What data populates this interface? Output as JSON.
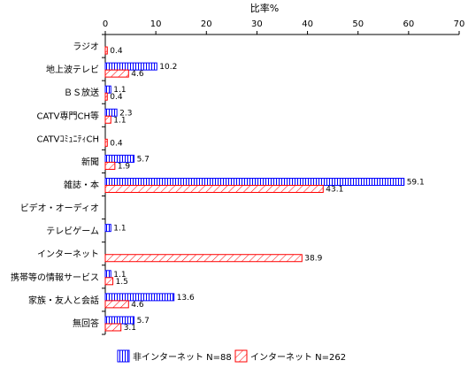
{
  "chart_data": {
    "type": "bar",
    "orientation": "horizontal",
    "title": "比率%",
    "xlim": [
      0,
      70
    ],
    "x_ticks": [
      "0",
      "10",
      "20",
      "30",
      "40",
      "50",
      "60",
      "70"
    ],
    "grid": false,
    "legend_position": "bottom",
    "categories": [
      "ラジオ",
      "地上波テレビ",
      "ＢＳ放送",
      "CATV専門CH等",
      "CATVｺﾐｭﾆﾃｨCH",
      "新聞",
      "雑誌・本",
      "ビデオ・オーディオ",
      "テレビゲーム",
      "インターネット",
      "携帯等の情報サービス",
      "家族・友人と会話",
      "無回答"
    ],
    "series": [
      {
        "name": "非インターネット N=88",
        "pattern": "vertical-lines",
        "color": "#0000ff",
        "values": [
          null,
          10.2,
          1.1,
          2.3,
          null,
          5.7,
          59.1,
          null,
          1.1,
          null,
          1.1,
          13.6,
          5.7
        ],
        "labels": [
          "",
          "10.2",
          "1.1",
          "2.3",
          "",
          "5.7",
          "59.1",
          "",
          "1.1",
          "",
          "1.1",
          "13.6",
          "5.7"
        ]
      },
      {
        "name": "インターネット N=262",
        "pattern": "diagonal-lines",
        "color": "#ff0000",
        "values": [
          0.4,
          4.6,
          0.4,
          1.1,
          0.4,
          1.9,
          43.1,
          null,
          null,
          38.9,
          1.5,
          4.6,
          3.1
        ],
        "labels": [
          "0.4",
          "4.6",
          "0.4",
          "1.1",
          "0.4",
          "1.9",
          "43.1",
          "",
          "",
          "38.9",
          "1.5",
          "4.6",
          "3.1"
        ]
      }
    ]
  }
}
